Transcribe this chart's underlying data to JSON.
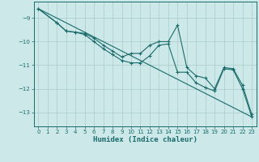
{
  "xlabel": "Humidex (Indice chaleur)",
  "background_color": "#cde8e8",
  "line_color": "#1a6b6b",
  "grid_color": "#aacccc",
  "xlim": [
    -0.5,
    23.5
  ],
  "ylim": [
    -13.6,
    -8.3
  ],
  "yticks": [
    -13,
    -12,
    -11,
    -10,
    -9
  ],
  "xticks": [
    0,
    1,
    2,
    3,
    4,
    5,
    6,
    7,
    8,
    9,
    10,
    11,
    12,
    13,
    14,
    15,
    16,
    17,
    18,
    19,
    20,
    21,
    22,
    23
  ],
  "line1_x": [
    0,
    2,
    3,
    4,
    5,
    6,
    7,
    8,
    9,
    10,
    11,
    12,
    13,
    14,
    15,
    16,
    17,
    18,
    19,
    20,
    21,
    22,
    23
  ],
  "line1_y": [
    -8.6,
    -9.2,
    -9.55,
    -9.6,
    -9.65,
    -9.85,
    -10.15,
    -10.4,
    -10.65,
    -10.5,
    -10.5,
    -10.15,
    -10.0,
    -10.0,
    -9.3,
    -11.1,
    -11.45,
    -11.55,
    -12.0,
    -11.1,
    -11.15,
    -11.85,
    -13.1
  ],
  "line2_x": [
    0,
    2,
    3,
    4,
    5,
    6,
    7,
    8,
    9,
    10,
    11,
    12,
    13,
    14,
    15,
    16,
    17,
    18,
    19,
    20,
    21,
    22,
    23
  ],
  "line2_y": [
    -8.6,
    -9.2,
    -9.55,
    -9.6,
    -9.7,
    -10.0,
    -10.3,
    -10.55,
    -10.8,
    -10.9,
    -10.9,
    -10.6,
    -10.15,
    -10.1,
    -11.3,
    -11.3,
    -11.75,
    -11.95,
    -12.1,
    -11.15,
    -11.2,
    -12.0,
    -13.2
  ],
  "line3_x": [
    0,
    23
  ],
  "line3_y": [
    -8.6,
    -13.2
  ]
}
